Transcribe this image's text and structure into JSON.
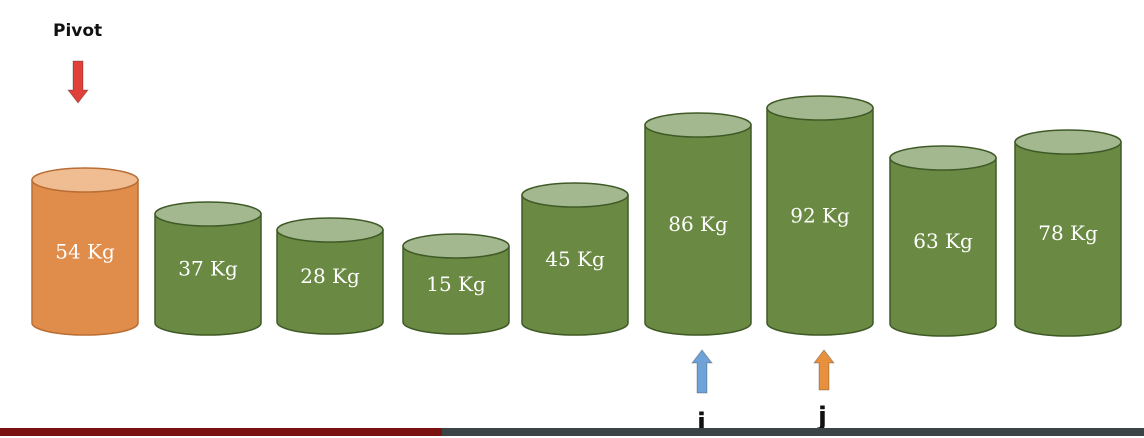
{
  "pivot_label": "Pivot",
  "i_label": "i",
  "j_label": "j",
  "colors": {
    "pivot_body": "#e08c4b",
    "pivot_top": "#f0bd92",
    "pivot_stroke": "#b96e35",
    "body": "#6a8a43",
    "top": "#a4b88f",
    "stroke": "#3f5a27",
    "text": "#ffffff",
    "pivot_arrow": "#e0413a",
    "i_arrow": "#6fa3d8",
    "j_arrow": "#e7913e",
    "footer_left": "#7a1212",
    "footer_right": "#3a4446"
  },
  "weights": [
    {
      "label": "54 Kg",
      "value": 54,
      "pivot": true
    },
    {
      "label": "37 Kg",
      "value": 37,
      "pivot": false
    },
    {
      "label": "28 Kg",
      "value": 28,
      "pivot": false
    },
    {
      "label": "15 Kg",
      "value": 15,
      "pivot": false
    },
    {
      "label": "45 Kg",
      "value": 45,
      "pivot": false
    },
    {
      "label": "86 Kg",
      "value": 86,
      "pivot": false
    },
    {
      "label": "92 Kg",
      "value": 92,
      "pivot": false
    },
    {
      "label": "63 Kg",
      "value": 63,
      "pivot": false
    },
    {
      "label": "78 Kg",
      "value": 78,
      "pivot": false
    }
  ],
  "i_index": 5,
  "j_index": 6
}
